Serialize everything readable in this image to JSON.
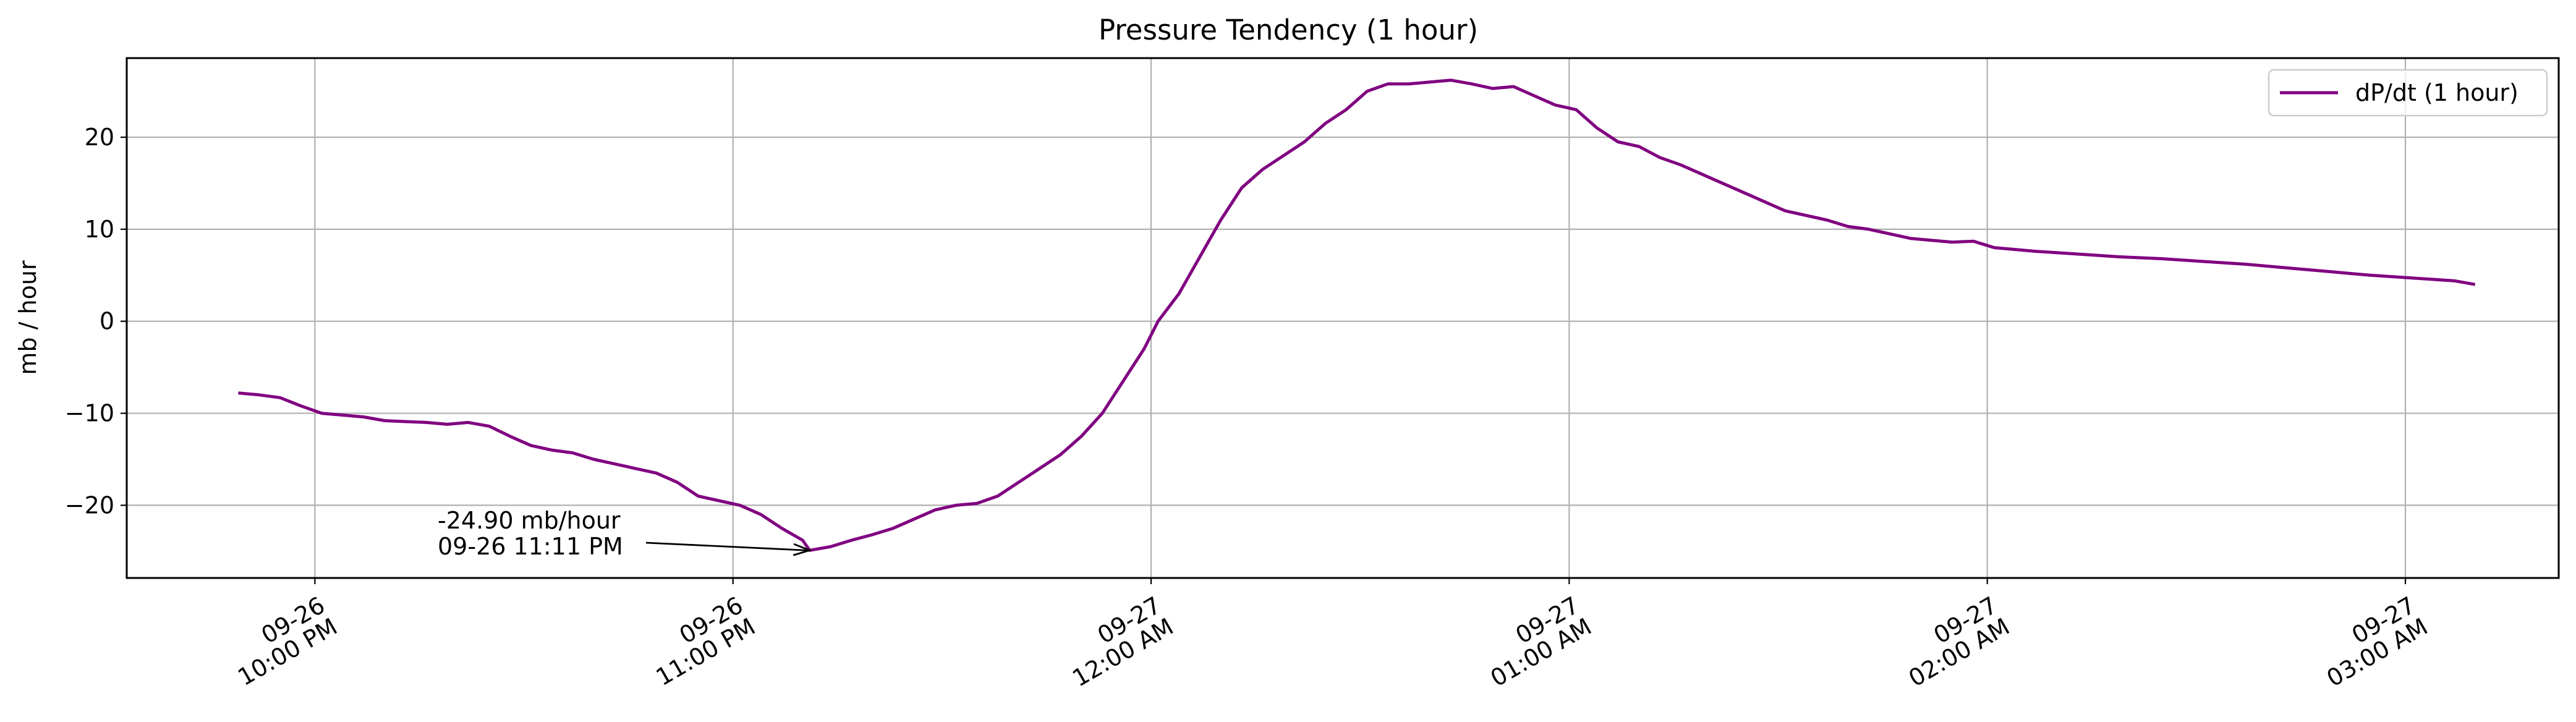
{
  "chart_data": {
    "type": "line",
    "title": "Pressure Tendency (1 hour)",
    "xlabel": "",
    "ylabel": "mb / hour",
    "grid": true,
    "legend_position": "top-right",
    "ylim": [
      -27.9,
      28.6
    ],
    "xlim": [
      "2023-09-26 21:33",
      "2023-09-27 03:22"
    ],
    "yticks": [
      -20,
      -10,
      0,
      10,
      20
    ],
    "ytick_labels": [
      "−20",
      "−10",
      "0",
      "10",
      "20"
    ],
    "xticks": [
      {
        "t": "2023-09-26 22:00",
        "line1": "09-26",
        "line2": "10:00 PM"
      },
      {
        "t": "2023-09-26 23:00",
        "line1": "09-26",
        "line2": "11:00 PM"
      },
      {
        "t": "2023-09-27 00:00",
        "line1": "09-27",
        "line2": "12:00 AM"
      },
      {
        "t": "2023-09-27 01:00",
        "line1": "09-27",
        "line2": "01:00 AM"
      },
      {
        "t": "2023-09-27 02:00",
        "line1": "09-27",
        "line2": "02:00 AM"
      },
      {
        "t": "2023-09-27 03:00",
        "line1": "09-27",
        "line2": "03:00 AM"
      }
    ],
    "series": [
      {
        "name": "dP/dt (1 hour)",
        "color": "#800080",
        "points": [
          [
            "2023-09-26 21:49",
            -7.8
          ],
          [
            "2023-09-26 21:52",
            -8.0
          ],
          [
            "2023-09-26 21:55",
            -8.3
          ],
          [
            "2023-09-26 21:58",
            -9.2
          ],
          [
            "2023-09-26 22:01",
            -10.0
          ],
          [
            "2023-09-26 22:04",
            -10.2
          ],
          [
            "2023-09-26 22:07",
            -10.4
          ],
          [
            "2023-09-26 22:10",
            -10.8
          ],
          [
            "2023-09-26 22:13",
            -10.9
          ],
          [
            "2023-09-26 22:16",
            -11.0
          ],
          [
            "2023-09-26 22:19",
            -11.2
          ],
          [
            "2023-09-26 22:22",
            -11.0
          ],
          [
            "2023-09-26 22:25",
            -11.4
          ],
          [
            "2023-09-26 22:28",
            -12.5
          ],
          [
            "2023-09-26 22:31",
            -13.5
          ],
          [
            "2023-09-26 22:34",
            -14.0
          ],
          [
            "2023-09-26 22:37",
            -14.3
          ],
          [
            "2023-09-26 22:40",
            -15.0
          ],
          [
            "2023-09-26 22:43",
            -15.5
          ],
          [
            "2023-09-26 22:46",
            -16.0
          ],
          [
            "2023-09-26 22:49",
            -16.5
          ],
          [
            "2023-09-26 22:52",
            -17.5
          ],
          [
            "2023-09-26 22:55",
            -19.0
          ],
          [
            "2023-09-26 22:58",
            -19.5
          ],
          [
            "2023-09-26 23:01",
            -20.0
          ],
          [
            "2023-09-26 23:04",
            -21.0
          ],
          [
            "2023-09-26 23:07",
            -22.5
          ],
          [
            "2023-09-26 23:10",
            -23.8
          ],
          [
            "2023-09-26 23:11",
            -24.9
          ],
          [
            "2023-09-26 23:14",
            -24.5
          ],
          [
            "2023-09-26 23:17",
            -23.8
          ],
          [
            "2023-09-26 23:20",
            -23.2
          ],
          [
            "2023-09-26 23:23",
            -22.5
          ],
          [
            "2023-09-26 23:26",
            -21.5
          ],
          [
            "2023-09-26 23:29",
            -20.5
          ],
          [
            "2023-09-26 23:32",
            -20.0
          ],
          [
            "2023-09-26 23:35",
            -19.8
          ],
          [
            "2023-09-26 23:38",
            -19.0
          ],
          [
            "2023-09-26 23:41",
            -17.5
          ],
          [
            "2023-09-26 23:44",
            -16.0
          ],
          [
            "2023-09-26 23:47",
            -14.5
          ],
          [
            "2023-09-26 23:50",
            -12.5
          ],
          [
            "2023-09-26 23:53",
            -10.0
          ],
          [
            "2023-09-26 23:56",
            -6.5
          ],
          [
            "2023-09-26 23:59",
            -3.0
          ],
          [
            "2023-09-27 00:01",
            0.0
          ],
          [
            "2023-09-27 00:04",
            3.0
          ],
          [
            "2023-09-27 00:07",
            7.0
          ],
          [
            "2023-09-27 00:10",
            11.0
          ],
          [
            "2023-09-27 00:13",
            14.5
          ],
          [
            "2023-09-27 00:16",
            16.5
          ],
          [
            "2023-09-27 00:19",
            18.0
          ],
          [
            "2023-09-27 00:22",
            19.5
          ],
          [
            "2023-09-27 00:25",
            21.5
          ],
          [
            "2023-09-27 00:28",
            23.0
          ],
          [
            "2023-09-27 00:31",
            25.0
          ],
          [
            "2023-09-27 00:34",
            25.8
          ],
          [
            "2023-09-27 00:37",
            25.8
          ],
          [
            "2023-09-27 00:40",
            26.0
          ],
          [
            "2023-09-27 00:43",
            26.2
          ],
          [
            "2023-09-27 00:46",
            25.8
          ],
          [
            "2023-09-27 00:49",
            25.3
          ],
          [
            "2023-09-27 00:52",
            25.5
          ],
          [
            "2023-09-27 00:55",
            24.5
          ],
          [
            "2023-09-27 00:58",
            23.5
          ],
          [
            "2023-09-27 01:01",
            23.0
          ],
          [
            "2023-09-27 01:04",
            21.0
          ],
          [
            "2023-09-27 01:07",
            19.5
          ],
          [
            "2023-09-27 01:10",
            19.0
          ],
          [
            "2023-09-27 01:13",
            17.8
          ],
          [
            "2023-09-27 01:16",
            17.0
          ],
          [
            "2023-09-27 01:19",
            16.0
          ],
          [
            "2023-09-27 01:22",
            15.0
          ],
          [
            "2023-09-27 01:25",
            14.0
          ],
          [
            "2023-09-27 01:28",
            13.0
          ],
          [
            "2023-09-27 01:31",
            12.0
          ],
          [
            "2023-09-27 01:34",
            11.5
          ],
          [
            "2023-09-27 01:37",
            11.0
          ],
          [
            "2023-09-27 01:40",
            10.3
          ],
          [
            "2023-09-27 01:43",
            10.0
          ],
          [
            "2023-09-27 01:46",
            9.5
          ],
          [
            "2023-09-27 01:49",
            9.0
          ],
          [
            "2023-09-27 01:52",
            8.8
          ],
          [
            "2023-09-27 01:55",
            8.6
          ],
          [
            "2023-09-27 01:58",
            8.7
          ],
          [
            "2023-09-27 02:01",
            8.0
          ],
          [
            "2023-09-27 02:07",
            7.6
          ],
          [
            "2023-09-27 02:13",
            7.3
          ],
          [
            "2023-09-27 02:19",
            7.0
          ],
          [
            "2023-09-27 02:25",
            6.8
          ],
          [
            "2023-09-27 02:31",
            6.5
          ],
          [
            "2023-09-27 02:37",
            6.2
          ],
          [
            "2023-09-27 02:43",
            5.8
          ],
          [
            "2023-09-27 02:49",
            5.4
          ],
          [
            "2023-09-27 02:55",
            5.0
          ],
          [
            "2023-09-27 03:01",
            4.7
          ],
          [
            "2023-09-27 03:07",
            4.4
          ],
          [
            "2023-09-27 03:10",
            4.0
          ]
        ]
      }
    ],
    "annotation": {
      "line1": "-24.90 mb/hour",
      "line2": "09-26 11:11 PM",
      "target": [
        "2023-09-26 23:11",
        -24.9
      ]
    }
  }
}
